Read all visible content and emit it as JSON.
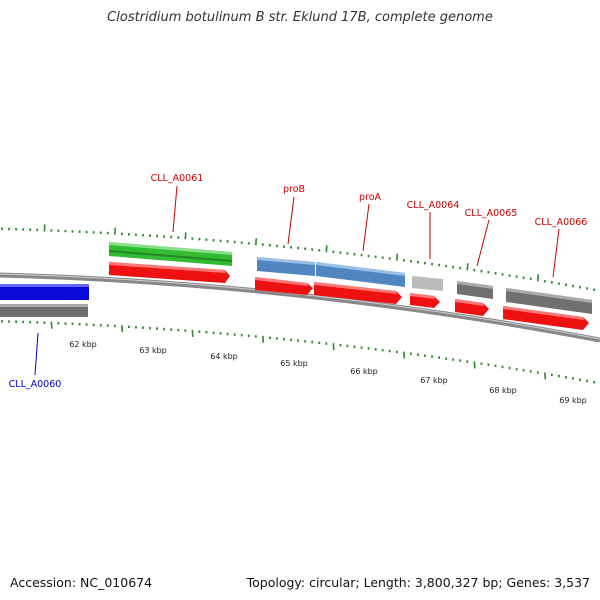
{
  "title": "Clostridium botulinum B str. Eklund 17B, complete genome",
  "footer": {
    "accession": "Accession: NC_010674",
    "summary": "Topology: circular; Length: 3,800,327 bp; Genes: 3,537"
  },
  "colors": {
    "forward_label": "#cc0000",
    "reverse_label": "#0000cc",
    "tick": "#2e8b2e",
    "cds": "#ee1111",
    "gene_gray": "#707070",
    "gene_blue": "#4f86c0",
    "gene_green": "#33bb33",
    "gene_light": "#bbbbbb",
    "gene_darkblue": "#0a0ad8"
  },
  "kbp_labels": [
    "62 kbp",
    "63 kbp",
    "64 kbp",
    "65 kbp",
    "66 kbp",
    "67 kbp",
    "68 kbp",
    "69 kbp"
  ],
  "genes": [
    {
      "name": "CLL_A0060",
      "strand": "reverse"
    },
    {
      "name": "CLL_A0061",
      "strand": "forward"
    },
    {
      "name": "proB",
      "strand": "forward"
    },
    {
      "name": "proA",
      "strand": "forward"
    },
    {
      "name": "CLL_A0064",
      "strand": "forward"
    },
    {
      "name": "CLL_A0065",
      "strand": "forward"
    },
    {
      "name": "CLL_A0066",
      "strand": "forward"
    }
  ]
}
